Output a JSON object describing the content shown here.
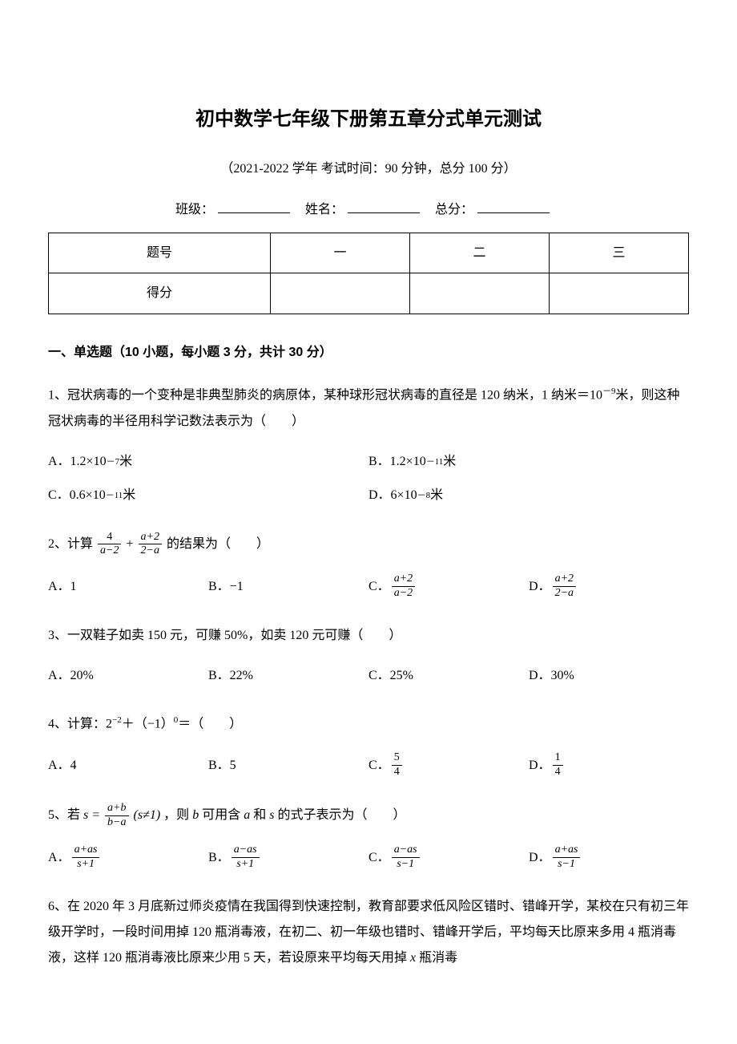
{
  "title": "初中数学七年级下册第五章分式单元测试",
  "subtitle": "（2021-2022 学年 考试时间：90 分钟，总分 100 分）",
  "info": {
    "class_label": "班级：",
    "name_label": "姓名：",
    "score_label": "总分："
  },
  "score_table": {
    "row1": [
      "题号",
      "一",
      "二",
      "三"
    ],
    "row2": "得分"
  },
  "section1_header": "一、单选题（10 小题，每小题 3 分，共计 30 分）",
  "q1": {
    "text_part1": "1、冠状病毒的一个变种是非典型肺炎的病原体，某种球形冠状病毒的直径是 120 纳米，1 纳米＝10",
    "text_exp1": "－9",
    "text_part2": "米，则这种冠状病毒的半径用科学记数法表示为（　　）",
    "opt_a_pre": "A．1.2×10",
    "opt_a_exp": "－7",
    "opt_a_post": "米",
    "opt_b_pre": "B．1.2×10",
    "opt_b_exp": "－11",
    "opt_b_post": "米",
    "opt_c_pre": "C．0.6×10",
    "opt_c_exp": "－11",
    "opt_c_post": "米",
    "opt_d_pre": "D．6×10",
    "opt_d_exp": "－8",
    "opt_d_post": "米"
  },
  "q2": {
    "text_pre": "2、计算",
    "frac1_num": "4",
    "frac1_den": "a−2",
    "plus": "+",
    "frac2_num": "a+2",
    "frac2_den": "2−a",
    "text_post": "的结果为（　　）",
    "opt_a": "A．1",
    "opt_b": "B．−1",
    "opt_c_label": "C．",
    "opt_c_num": "a+2",
    "opt_c_den": "a−2",
    "opt_d_label": "D．",
    "opt_d_num": "a+2",
    "opt_d_den": "2−a"
  },
  "q3": {
    "text": "3、一双鞋子如卖 150 元，可赚 50%，如卖 120 元可赚（　　）",
    "opt_a": "A．20%",
    "opt_b": "B．22%",
    "opt_c": "C．25%",
    "opt_d": "D．30%"
  },
  "q4": {
    "text_pre": "4、计算：2",
    "exp1": "−2",
    "text_mid": "＋（−1）",
    "exp2": "0",
    "text_post": "＝（　　）",
    "opt_a": "A．4",
    "opt_b": "B．5",
    "opt_c_label": "C．",
    "opt_c_num": "5",
    "opt_c_den": "4",
    "opt_d_label": "D．",
    "opt_d_num": "1",
    "opt_d_den": "4"
  },
  "q5": {
    "text_pre": "5、若",
    "s_eq": "s =",
    "frac_num": "a+b",
    "frac_den": "b−a",
    "cond": "(s≠1)",
    "text_mid": "，则",
    "b_var": "b",
    "text_mid2": "可用含",
    "a_var": "a",
    "and": "和",
    "s_var": "s",
    "text_post": "的式子表示为（　　）",
    "opt_a_label": "A．",
    "opt_a_num": "a+as",
    "opt_a_den": "s+1",
    "opt_b_label": "B．",
    "opt_b_num": "a−as",
    "opt_b_den": "s+1",
    "opt_c_label": "C．",
    "opt_c_num": "a−as",
    "opt_c_den": "s−1",
    "opt_d_label": "D．",
    "opt_d_num": "a+as",
    "opt_d_den": "s−1"
  },
  "q6": {
    "text_part1": "6、在 2020 年 3 月底新过师炎疫情在我国得到快速控制，教育部要求低风险区错时、错峰开学，某校在只有初三年级开学时，一段时间用掉 120 瓶消毒液，在初二、初一年级也错时、错峰开学后，平均每天比原来多用 4 瓶消毒液，这样 120 瓶消毒液比原来少用 5 天，若设原来平均每天用掉 ",
    "x_var": "x",
    "text_part2": " 瓶消毒"
  }
}
